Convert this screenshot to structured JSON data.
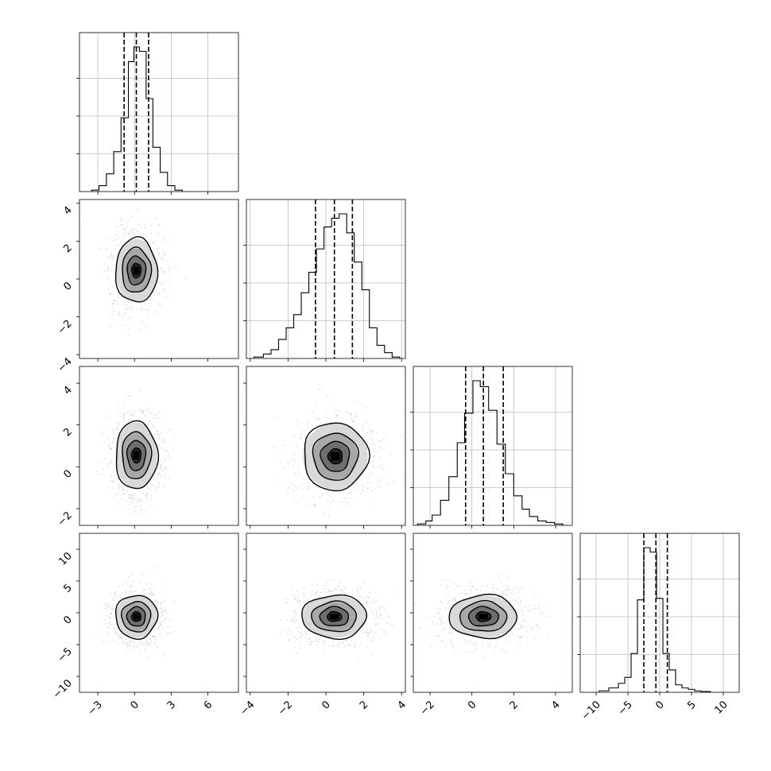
{
  "chart_data": {
    "type": "corner",
    "parameters": [
      {
        "range": [
          -4.5,
          8.5
        ],
        "ticks": [
          -3,
          0,
          3,
          6
        ],
        "tick_labels": [
          "−3",
          "0",
          "3",
          "6"
        ],
        "quantiles": [
          -0.85,
          0.15,
          1.15
        ],
        "hist": {
          "edges": [
            -3.5,
            -2.9,
            -2.3,
            -1.7,
            -1.1,
            -0.5,
            -0.05,
            0.4,
            0.95,
            1.5,
            2.1,
            2.7,
            3.3,
            3.9
          ],
          "counts": [
            0.01,
            0.04,
            0.12,
            0.27,
            0.5,
            0.88,
            0.98,
            0.95,
            0.63,
            0.3,
            0.13,
            0.04,
            0.01
          ]
        }
      },
      {
        "range": [
          -4.2,
          4.2
        ],
        "ticks": [
          -4,
          -2,
          0,
          2,
          4
        ],
        "tick_labels": [
          "−4",
          "−2",
          "0",
          "2",
          "4"
        ],
        "quantiles": [
          -0.55,
          0.45,
          1.4
        ],
        "hist": {
          "edges": [
            -3.8,
            -3.3,
            -2.9,
            -2.5,
            -2.1,
            -1.7,
            -1.3,
            -0.9,
            -0.5,
            -0.1,
            0.3,
            0.7,
            1.1,
            1.5,
            1.9,
            2.3,
            2.7,
            3.1,
            3.5,
            3.9
          ],
          "counts": [
            0.01,
            0.03,
            0.06,
            0.13,
            0.21,
            0.3,
            0.45,
            0.59,
            0.75,
            0.9,
            0.96,
            0.99,
            0.86,
            0.66,
            0.47,
            0.21,
            0.09,
            0.04,
            0.01
          ]
        }
      },
      {
        "range": [
          -2.8,
          4.8
        ],
        "ticks": [
          -2,
          0,
          2,
          4
        ],
        "tick_labels": [
          "−2",
          "0",
          "2",
          "4"
        ],
        "quantiles": [
          -0.3,
          0.55,
          1.5
        ],
        "hist": {
          "edges": [
            -2.6,
            -2.2,
            -1.9,
            -1.5,
            -1.1,
            -0.7,
            -0.35,
            0.05,
            0.4,
            0.8,
            1.2,
            1.6,
            2.0,
            2.4,
            2.75,
            3.15,
            3.55,
            3.95,
            4.35
          ],
          "counts": [
            0.01,
            0.03,
            0.07,
            0.17,
            0.33,
            0.56,
            0.76,
            0.98,
            0.94,
            0.78,
            0.55,
            0.35,
            0.2,
            0.11,
            0.06,
            0.03,
            0.02,
            0.01
          ]
        }
      },
      {
        "range": [
          -12.5,
          12.5
        ],
        "ticks": [
          -10,
          -5,
          0,
          5,
          10
        ],
        "tick_labels": [
          "−10",
          "−5",
          "0",
          "5",
          "10"
        ],
        "quantiles": [
          -2.5,
          -0.6,
          1.2
        ],
        "hist": {
          "edges": [
            -9.5,
            -8.0,
            -6.5,
            -5.5,
            -4.5,
            -3.5,
            -2.5,
            -1.5,
            -0.5,
            0.5,
            1.5,
            2.5,
            3.5,
            4.5,
            5.5,
            6.5,
            8.0
          ],
          "counts": [
            0.01,
            0.03,
            0.06,
            0.1,
            0.26,
            0.62,
            0.97,
            0.94,
            0.63,
            0.26,
            0.15,
            0.05,
            0.03,
            0.02,
            0.01,
            0.005
          ]
        }
      }
    ],
    "pairs": [
      {
        "row": 1,
        "col": 0,
        "center": [
          0.15,
          0.45
        ],
        "sigma": [
          0.95,
          0.95
        ],
        "levels": [
          0.4,
          0.8,
          1.25,
          1.8
        ]
      },
      {
        "row": 2,
        "col": 0,
        "center": [
          0.15,
          0.55
        ],
        "sigma": [
          0.95,
          0.9
        ],
        "levels": [
          0.4,
          0.8,
          1.25,
          1.8
        ]
      },
      {
        "row": 2,
        "col": 1,
        "center": [
          0.5,
          0.5
        ],
        "sigma": [
          0.95,
          0.9
        ],
        "levels": [
          0.4,
          0.8,
          1.25,
          1.8
        ]
      },
      {
        "row": 3,
        "col": 0,
        "center": [
          0.15,
          -0.6
        ],
        "sigma": [
          0.95,
          1.9
        ],
        "levels": [
          0.4,
          0.8,
          1.25,
          1.8
        ]
      },
      {
        "row": 3,
        "col": 1,
        "center": [
          0.45,
          -0.6
        ],
        "sigma": [
          0.95,
          1.9
        ],
        "levels": [
          0.4,
          0.8,
          1.25,
          1.8
        ]
      },
      {
        "row": 3,
        "col": 2,
        "center": [
          0.55,
          -0.6
        ],
        "sigma": [
          0.9,
          1.9
        ],
        "levels": [
          0.4,
          0.8,
          1.25,
          1.8
        ]
      }
    ],
    "grid": true,
    "title": "",
    "xlabel": "",
    "ylabel": ""
  }
}
